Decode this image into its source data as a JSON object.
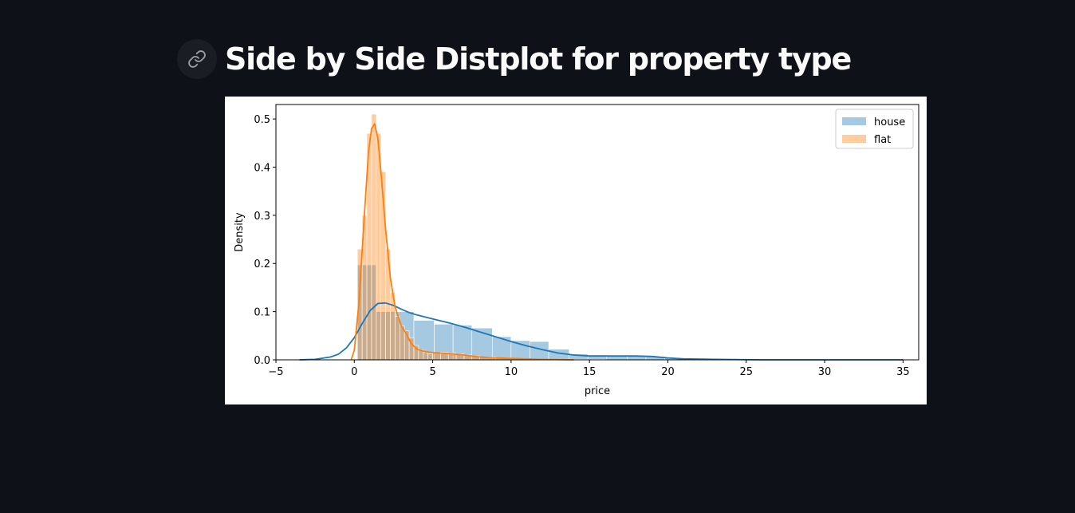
{
  "header": {
    "title": "Side by Side Distplot for property type",
    "link_icon": "link-icon"
  },
  "chart_data": {
    "type": "histogram-kde",
    "xlabel": "price",
    "ylabel": "Density",
    "xlim": [
      -5,
      36
    ],
    "ylim": [
      0,
      0.53
    ],
    "xticks": [
      -5,
      0,
      5,
      10,
      15,
      20,
      25,
      30,
      35
    ],
    "yticks": [
      0.0,
      0.1,
      0.2,
      0.3,
      0.4,
      0.5
    ],
    "xtick_labels": [
      "−5",
      "0",
      "5",
      "10",
      "15",
      "20",
      "25",
      "30",
      "35"
    ],
    "ytick_labels": [
      "0.0",
      "0.1",
      "0.2",
      "0.3",
      "0.4",
      "0.5"
    ],
    "legend_position": "top-right",
    "series": [
      {
        "name": "house",
        "color": "#1f77b4",
        "bar_opacity": 0.4,
        "bins": [
          [
            0.2,
            1.4,
            0.197
          ],
          [
            1.4,
            2.6,
            0.1
          ],
          [
            2.6,
            3.8,
            0.1
          ],
          [
            3.8,
            5.1,
            0.082
          ],
          [
            5.1,
            6.3,
            0.074
          ],
          [
            6.3,
            7.5,
            0.072
          ],
          [
            7.5,
            8.8,
            0.066
          ],
          [
            8.8,
            10.0,
            0.048
          ],
          [
            10.0,
            11.2,
            0.04
          ],
          [
            11.2,
            12.4,
            0.038
          ],
          [
            12.4,
            13.7,
            0.022
          ],
          [
            13.7,
            14.9,
            0.012
          ],
          [
            14.9,
            16.1,
            0.01
          ],
          [
            16.1,
            17.4,
            0.008
          ],
          [
            17.4,
            18.6,
            0.008
          ],
          [
            18.6,
            19.8,
            0.007
          ],
          [
            19.8,
            21.0,
            0.004
          ],
          [
            21.0,
            22.3,
            0.001
          ],
          [
            22.3,
            23.5,
            0.001
          ],
          [
            23.5,
            24.7,
            0.001
          ],
          [
            24.7,
            26.0,
            0.0
          ],
          [
            26.0,
            27.2,
            0.0
          ],
          [
            27.2,
            28.4,
            0.0
          ],
          [
            28.4,
            29.6,
            0.0
          ],
          [
            29.6,
            30.9,
            0.0
          ],
          [
            30.9,
            32.1,
            0.0
          ],
          [
            32.1,
            33.3,
            0.0
          ],
          [
            33.3,
            34.5,
            0.0
          ]
        ],
        "kde": [
          [
            -3.5,
            0.0
          ],
          [
            -2.5,
            0.001
          ],
          [
            -1.5,
            0.006
          ],
          [
            -1.0,
            0.012
          ],
          [
            -0.5,
            0.025
          ],
          [
            0.0,
            0.046
          ],
          [
            0.5,
            0.075
          ],
          [
            1.0,
            0.102
          ],
          [
            1.5,
            0.117
          ],
          [
            2.0,
            0.118
          ],
          [
            2.5,
            0.113
          ],
          [
            3.0,
            0.105
          ],
          [
            3.5,
            0.098
          ],
          [
            4.0,
            0.093
          ],
          [
            5.0,
            0.085
          ],
          [
            6.0,
            0.077
          ],
          [
            7.0,
            0.068
          ],
          [
            8.0,
            0.058
          ],
          [
            9.0,
            0.048
          ],
          [
            10.0,
            0.038
          ],
          [
            11.0,
            0.029
          ],
          [
            12.0,
            0.021
          ],
          [
            13.0,
            0.014
          ],
          [
            14.0,
            0.01
          ],
          [
            15.0,
            0.008
          ],
          [
            16.0,
            0.008
          ],
          [
            17.0,
            0.008
          ],
          [
            18.0,
            0.008
          ],
          [
            19.0,
            0.007
          ],
          [
            20.0,
            0.004
          ],
          [
            21.0,
            0.002
          ],
          [
            23.0,
            0.001
          ],
          [
            26.0,
            0.0
          ],
          [
            30.0,
            0.0
          ],
          [
            35.0,
            0.0
          ]
        ]
      },
      {
        "name": "flat",
        "color": "#ff7f0e",
        "bar_opacity": 0.4,
        "bins": [
          [
            0.2,
            0.5,
            0.23
          ],
          [
            0.5,
            0.8,
            0.3
          ],
          [
            0.8,
            1.1,
            0.47
          ],
          [
            1.1,
            1.4,
            0.51
          ],
          [
            1.4,
            1.7,
            0.47
          ],
          [
            1.7,
            2.0,
            0.39
          ],
          [
            2.0,
            2.3,
            0.23
          ],
          [
            2.3,
            2.6,
            0.14
          ],
          [
            2.6,
            2.9,
            0.09
          ],
          [
            2.9,
            3.2,
            0.07
          ],
          [
            3.2,
            3.5,
            0.06
          ],
          [
            3.5,
            3.8,
            0.045
          ],
          [
            3.8,
            4.1,
            0.03
          ],
          [
            4.1,
            4.4,
            0.02
          ],
          [
            4.4,
            4.7,
            0.015
          ],
          [
            4.7,
            5.0,
            0.012
          ],
          [
            5.0,
            5.5,
            0.014
          ],
          [
            5.5,
            6.0,
            0.016
          ],
          [
            6.0,
            6.5,
            0.014
          ],
          [
            6.5,
            7.0,
            0.012
          ],
          [
            7.0,
            7.5,
            0.01
          ],
          [
            7.5,
            8.0,
            0.008
          ],
          [
            8.0,
            9.0,
            0.006
          ],
          [
            9.0,
            10.0,
            0.004
          ],
          [
            10.0,
            11.0,
            0.003
          ],
          [
            11.0,
            12.0,
            0.002
          ],
          [
            12.0,
            14.0,
            0.001
          ],
          [
            14.0,
            16.0,
            0.001
          ]
        ],
        "kde": [
          [
            -0.2,
            0.0
          ],
          [
            0.0,
            0.02
          ],
          [
            0.3,
            0.12
          ],
          [
            0.6,
            0.28
          ],
          [
            0.9,
            0.43
          ],
          [
            1.1,
            0.48
          ],
          [
            1.3,
            0.49
          ],
          [
            1.5,
            0.46
          ],
          [
            1.7,
            0.39
          ],
          [
            2.0,
            0.27
          ],
          [
            2.3,
            0.17
          ],
          [
            2.6,
            0.11
          ],
          [
            3.0,
            0.07
          ],
          [
            3.3,
            0.055
          ],
          [
            3.6,
            0.035
          ],
          [
            4.0,
            0.022
          ],
          [
            4.5,
            0.017
          ],
          [
            5.0,
            0.015
          ],
          [
            6.0,
            0.013
          ],
          [
            7.0,
            0.01
          ],
          [
            8.0,
            0.006
          ],
          [
            9.0,
            0.004
          ],
          [
            10.0,
            0.003
          ],
          [
            11.0,
            0.002
          ],
          [
            12.0,
            0.001
          ],
          [
            14.0,
            0.0
          ]
        ]
      }
    ]
  }
}
